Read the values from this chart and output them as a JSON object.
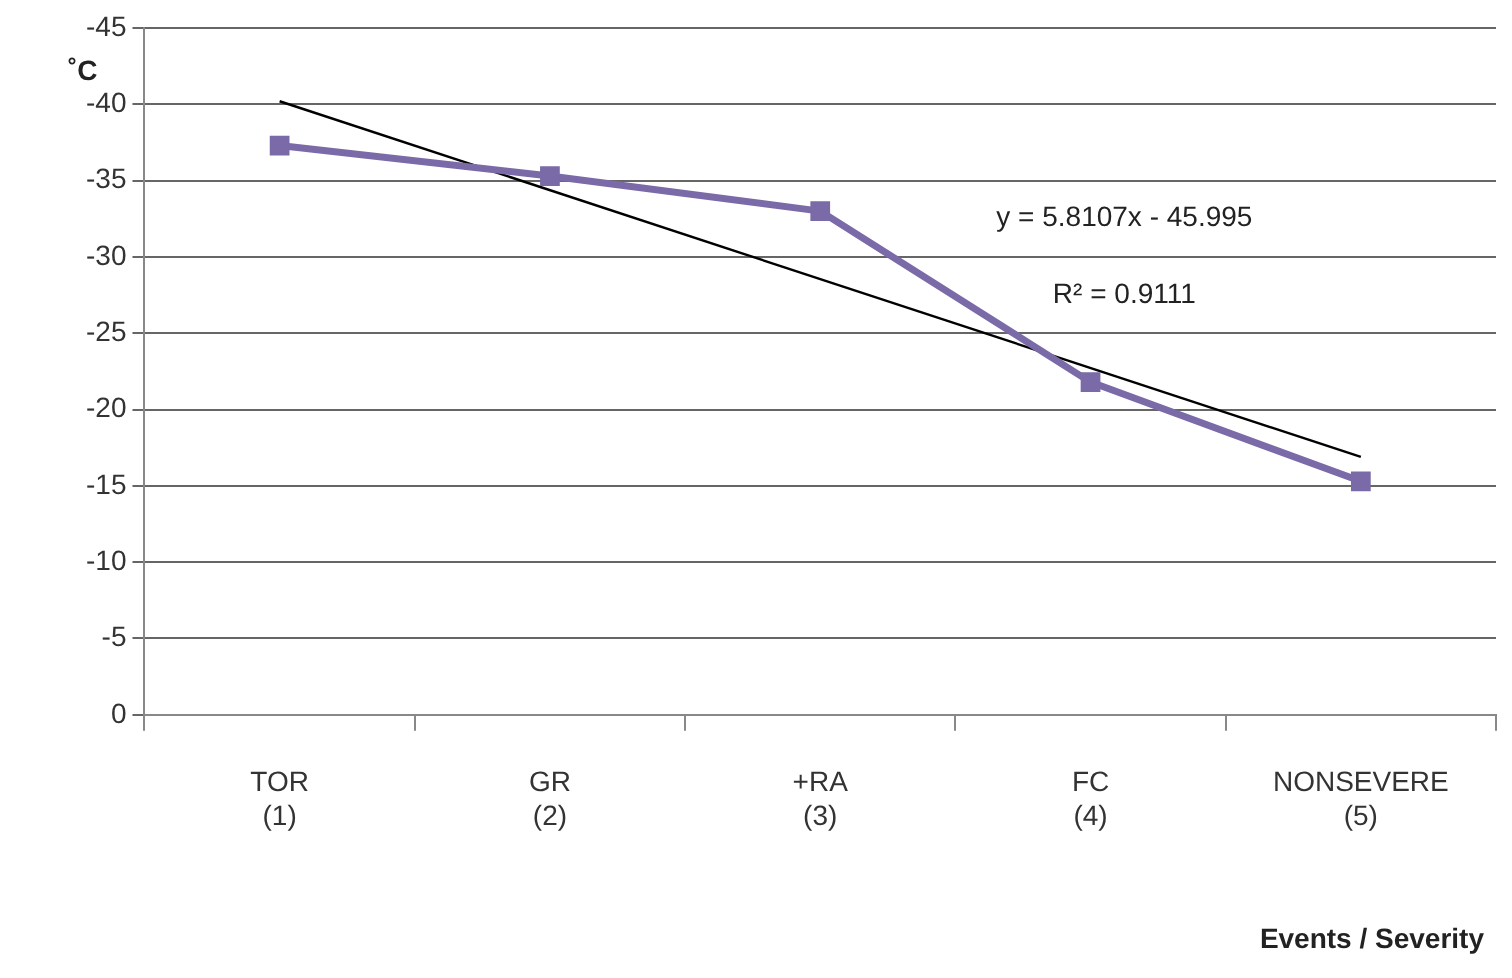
{
  "chart_data": {
    "type": "line",
    "categories": [
      "TOR\n(1)",
      "GR\n(2)",
      "+RA\n(3)",
      "FC\n(4)",
      "NONSEVERE\n(5)"
    ],
    "series": [
      {
        "color": "#7a6aa8",
        "values": [
          -37.3,
          -35.3,
          -33,
          -21.8,
          -15.3
        ],
        "marker": "square"
      },
      {
        "type": "line",
        "color": "#000000",
        "x": [
          "TOR\n(1)",
          "NONSEVERE\n(5)"
        ],
        "values": [
          -40.2,
          -16.9
        ],
        "marker": "none"
      }
    ],
    "ylim": [
      0,
      -45
    ],
    "yticks": [
      0,
      -5,
      -10,
      -15,
      -20,
      -25,
      -30,
      -35,
      -40,
      -45
    ],
    "grid": "y",
    "legend": false,
    "ylabel": "˚C",
    "xlabel": "Events / Severity",
    "annotations": [
      "y = 5.8107x - 45.995",
      "R² = 0.9111"
    ]
  }
}
